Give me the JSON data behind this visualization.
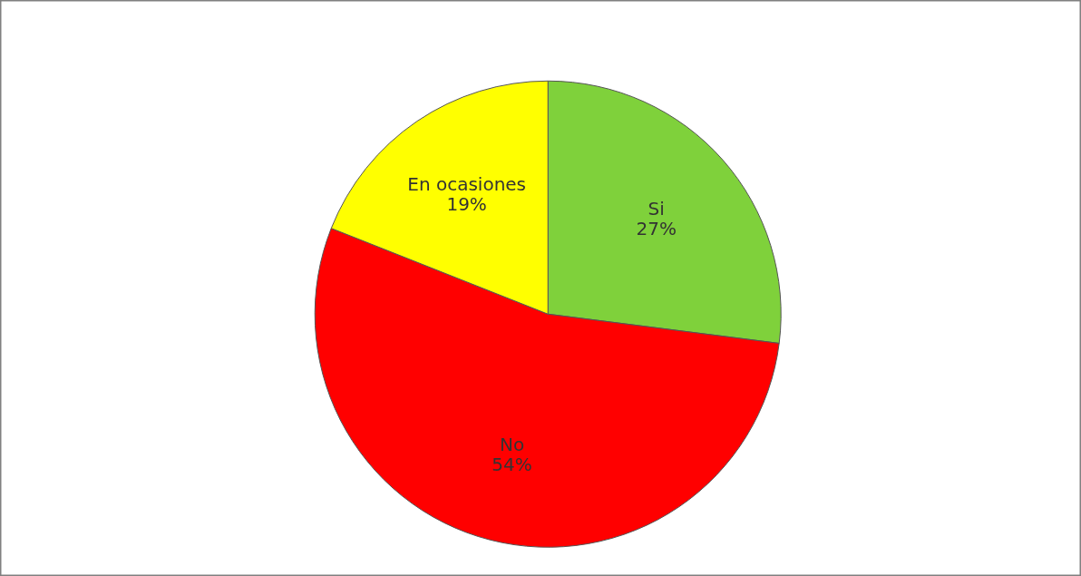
{
  "chart_data": {
    "type": "pie",
    "categories": [
      "Si",
      "No",
      "En ocasiones"
    ],
    "values": [
      27,
      54,
      19
    ],
    "value_labels": [
      "27%",
      "54%",
      "19%"
    ],
    "colors": [
      "#7fd13b",
      "#ff0000",
      "#ffff00"
    ],
    "legend": false
  }
}
